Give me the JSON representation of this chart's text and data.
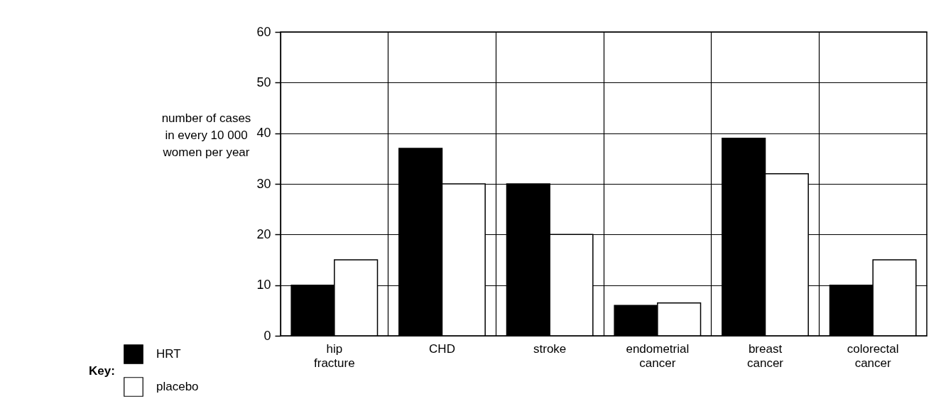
{
  "chart_data": {
    "type": "bar",
    "ylabel": "number of cases in every 10 000 women per year",
    "legend_title": "Key:",
    "categories": [
      "hip fracture",
      "CHD",
      "stroke",
      "endometrial cancer",
      "breast cancer",
      "colorectal cancer"
    ],
    "series": [
      {
        "name": "HRT",
        "color": "#000000",
        "values": [
          10,
          37,
          30,
          6,
          39,
          10
        ]
      },
      {
        "name": "placebo",
        "color": "#ffffff",
        "values": [
          15,
          30,
          20,
          6.5,
          32,
          15
        ]
      }
    ],
    "ylim": [
      0,
      60
    ],
    "yticks": [
      0,
      10,
      20,
      30,
      40,
      50,
      60
    ],
    "grid": true,
    "legend": "bottom left"
  }
}
